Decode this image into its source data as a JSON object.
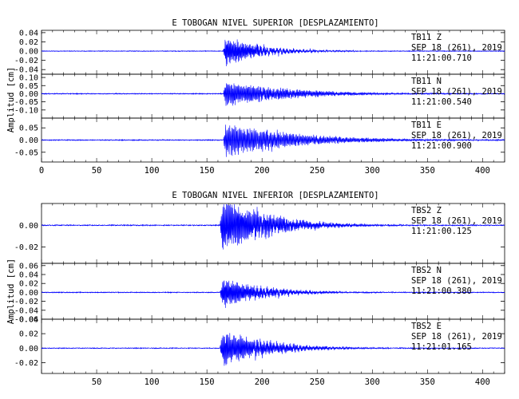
{
  "colors": {
    "trace": "#0000ff",
    "axis": "#000000",
    "background": "#ffffff"
  },
  "chart_data": [
    {
      "type": "line",
      "title": "E TOBOGAN NIVEL SUPERIOR [DESPLAZAMIENTO]",
      "ylabel": "Amplitud [cm]",
      "xlabel": "",
      "xlim": [
        0,
        420
      ],
      "x_ticks": [
        0,
        50,
        100,
        150,
        200,
        250,
        300,
        350,
        400
      ],
      "grid": false,
      "series": [
        {
          "name": "TB11   Z",
          "date": "SEP 18 (261), 2019",
          "time": "11:21:00.710",
          "ylim": [
            -0.05,
            0.045
          ],
          "y_ticks": [
            0.04,
            0.02,
            0.0,
            -0.02,
            -0.04
          ],
          "onset": 165,
          "peak": 0.04,
          "decay": 28,
          "freq": 3.2,
          "noise": 0.0008
        },
        {
          "name": "TB11   N",
          "date": "SEP 18 (261), 2019",
          "time": "11:21:00.540",
          "ylim": [
            -0.15,
            0.12
          ],
          "y_ticks": [
            0.1,
            0.05,
            0.0,
            -0.05,
            -0.1
          ],
          "onset": 165,
          "peak": 0.09,
          "decay": 55,
          "freq": 2.6,
          "noise": 0.003
        },
        {
          "name": "TB11   E",
          "date": "SEP 18 (261), 2019",
          "time": "11:21:00.900",
          "ylim": [
            -0.09,
            0.09
          ],
          "y_ticks": [
            0.05,
            0.0,
            -0.05
          ],
          "onset": 165,
          "peak": 0.08,
          "decay": 60,
          "freq": 2.4,
          "noise": 0.002
        }
      ]
    },
    {
      "type": "line",
      "title": "E TOBOGAN NIVEL INFERIOR [DESPLAZAMIENTO]",
      "ylabel": "Amplitud [cm]",
      "xlabel": "",
      "xlim": [
        0,
        420
      ],
      "x_ticks": [
        50,
        100,
        150,
        200,
        250,
        300,
        350,
        400
      ],
      "grid": false,
      "series": [
        {
          "name": "TBS2   Z",
          "date": "SEP 18 (261), 2019",
          "time": "11:21:00.125",
          "ylim": [
            -0.035,
            0.02
          ],
          "y_ticks": [
            0.0,
            -0.02
          ],
          "onset": 162,
          "peak": 0.03,
          "decay": 40,
          "freq": 2.9,
          "noise": 0.0005
        },
        {
          "name": "TBS2   N",
          "date": "SEP 18 (261), 2019",
          "time": "11:21:00.380",
          "ylim": [
            -0.06,
            0.065
          ],
          "y_ticks": [
            0.06,
            0.04,
            0.02,
            0.0,
            -0.02,
            -0.04,
            -0.06
          ],
          "onset": 162,
          "peak": 0.04,
          "decay": 35,
          "freq": 3.1,
          "noise": 0.001
        },
        {
          "name": "TBS2   E",
          "date": "SEP 18 (261), 2019",
          "time": "11:21:01.165",
          "ylim": [
            -0.035,
            0.04
          ],
          "y_ticks": [
            0.04,
            0.02,
            0.0,
            -0.02
          ],
          "onset": 162,
          "peak": 0.03,
          "decay": 38,
          "freq": 2.8,
          "noise": 0.0006
        }
      ]
    }
  ]
}
